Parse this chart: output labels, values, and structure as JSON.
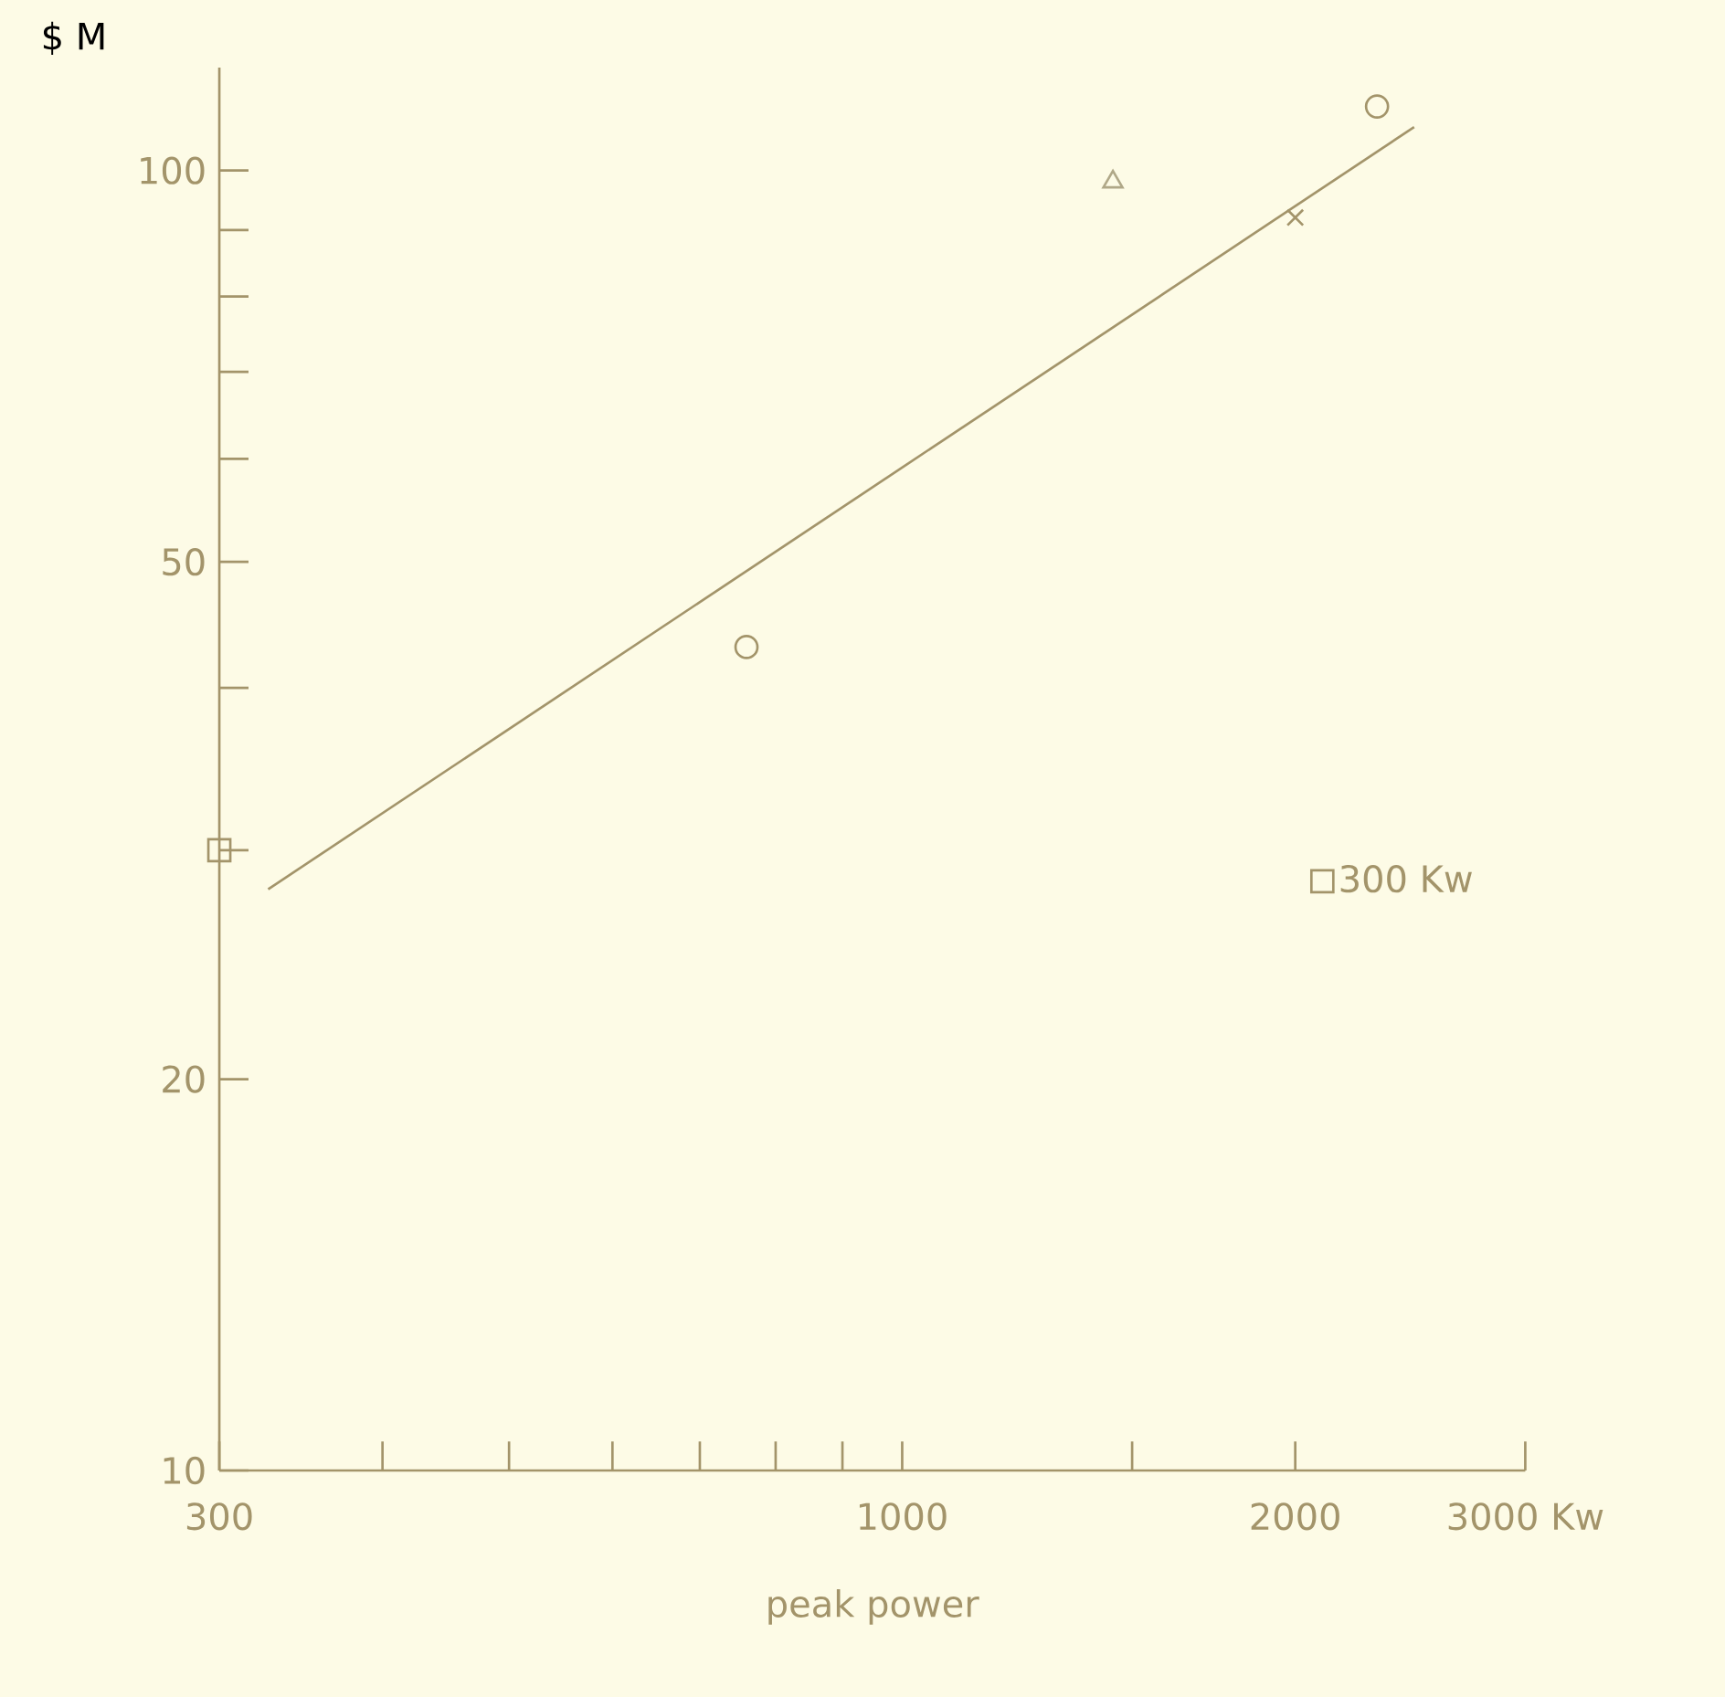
{
  "chart_data": {
    "type": "scatter",
    "xlabel": "peak power",
    "ylabel": "$ M",
    "log": "xy",
    "xlim": [
      300,
      3000
    ],
    "ylim": [
      10,
      120
    ],
    "xticks": [
      300,
      {
        "value": 400,
        "label": null
      },
      {
        "value": 500,
        "label": null
      },
      {
        "value": 600,
        "label": null
      },
      {
        "value": 700,
        "label": null
      },
      {
        "value": 800,
        "label": null
      },
      {
        "value": 900,
        "label": null
      },
      1000,
      {
        "value": 1500,
        "label": null
      },
      2000,
      {
        "value": 3000,
        "label": "3000 Kw"
      }
    ],
    "yticks": [
      10,
      20,
      {
        "value": 30,
        "label": null
      },
      {
        "value": 40,
        "label": null
      },
      50,
      {
        "value": 60,
        "label": null
      },
      {
        "value": 70,
        "label": null
      },
      {
        "value": 80,
        "label": null
      },
      {
        "value": 90,
        "label": null
      },
      100
    ],
    "legend": "right",
    "grid": false,
    "series": [
      {
        "color": "#a3946a",
        "marker": "circle",
        "x": [
          760,
          2310
        ],
        "values": [
          43,
          112
        ]
      },
      {
        "color": "#a3946a",
        "marker": "cross",
        "x": [
          2000
        ],
        "values": [
          92
        ]
      },
      {
        "name": "300 Kw",
        "color": "#a3946a",
        "marker": "square",
        "x": [
          300
        ],
        "values": [
          30
        ]
      },
      {
        "color": "#b0a888",
        "marker": "triangle",
        "x": [
          1450
        ],
        "values": [
          98
        ]
      },
      {
        "type": "line",
        "color": "#a3946a",
        "marker": "none",
        "x": [
          327,
          2466
        ],
        "values": [
          28,
          108
        ]
      }
    ]
  }
}
